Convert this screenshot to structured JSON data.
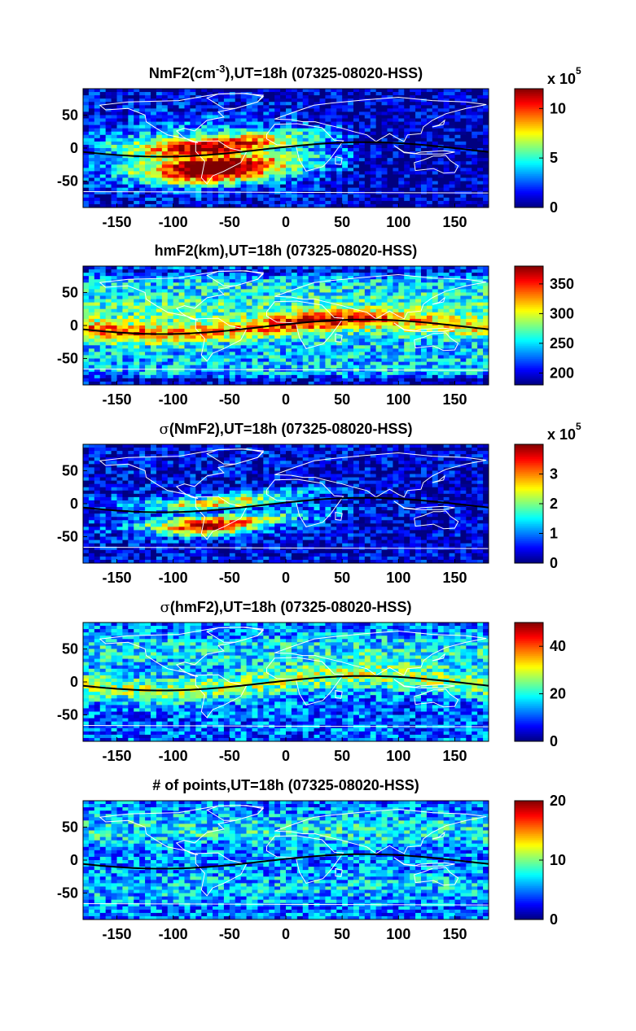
{
  "figure": {
    "background": "#ffffff",
    "map_bg": "#00008f",
    "coast_color": "#ffffff",
    "equator_color": "#000000",
    "colormap": "jet"
  },
  "chart_data": [
    {
      "type": "heatmap",
      "title_pre": "NmF2(cm",
      "title_sup": "-3",
      "title_post": "),UT=18h (07325-08020-HSS)",
      "xticks": [
        "-150",
        "-100",
        "-50",
        "0",
        "50",
        "100",
        "150"
      ],
      "xtick_values": [
        -150,
        -100,
        -50,
        0,
        50,
        100,
        150
      ],
      "yticks": [
        "50",
        "0",
        "-50"
      ],
      "ytick_values": [
        50,
        0,
        -50
      ],
      "xlim": [
        -180,
        180
      ],
      "ylim": [
        -90,
        90
      ],
      "clim": [
        0,
        12
      ],
      "cbar_ticks": [
        "0",
        "5",
        "10"
      ],
      "cbar_tick_values": [
        0,
        5,
        10
      ],
      "cbar_multiplier": "x 10",
      "cbar_exponent": "5",
      "field": "nmf2"
    },
    {
      "type": "heatmap",
      "title": "hmF2(km),UT=18h (07325-08020-HSS)",
      "xticks": [
        "-150",
        "-100",
        "-50",
        "0",
        "50",
        "100",
        "150"
      ],
      "xtick_values": [
        -150,
        -100,
        -50,
        0,
        50,
        100,
        150
      ],
      "yticks": [
        "50",
        "0",
        "-50"
      ],
      "ytick_values": [
        50,
        0,
        -50
      ],
      "xlim": [
        -180,
        180
      ],
      "ylim": [
        -90,
        90
      ],
      "clim": [
        180,
        380
      ],
      "cbar_ticks": [
        "200",
        "250",
        "300",
        "350"
      ],
      "cbar_tick_values": [
        200,
        250,
        300,
        350
      ],
      "field": "hmf2"
    },
    {
      "type": "heatmap",
      "title_sigma": "σ",
      "title": "(NmF2),UT=18h (07325-08020-HSS)",
      "xticks": [
        "-150",
        "-100",
        "-50",
        "0",
        "50",
        "100",
        "150"
      ],
      "xtick_values": [
        -150,
        -100,
        -50,
        0,
        50,
        100,
        150
      ],
      "yticks": [
        "50",
        "0",
        "-50"
      ],
      "ytick_values": [
        50,
        0,
        -50
      ],
      "xlim": [
        -180,
        180
      ],
      "ylim": [
        -90,
        90
      ],
      "clim": [
        0,
        4
      ],
      "cbar_ticks": [
        "0",
        "1",
        "2",
        "3"
      ],
      "cbar_tick_values": [
        0,
        1,
        2,
        3
      ],
      "cbar_multiplier": "x 10",
      "cbar_exponent": "5",
      "field": "sig_nmf2"
    },
    {
      "type": "heatmap",
      "title_sigma": "σ",
      "title": "(hmF2),UT=18h (07325-08020-HSS)",
      "xticks": [
        "-150",
        "-100",
        "-50",
        "0",
        "50",
        "100",
        "150"
      ],
      "xtick_values": [
        -150,
        -100,
        -50,
        0,
        50,
        100,
        150
      ],
      "yticks": [
        "50",
        "0",
        "-50"
      ],
      "ytick_values": [
        50,
        0,
        -50
      ],
      "xlim": [
        -180,
        180
      ],
      "ylim": [
        -90,
        90
      ],
      "clim": [
        0,
        50
      ],
      "cbar_ticks": [
        "0",
        "20",
        "40"
      ],
      "cbar_tick_values": [
        0,
        20,
        40
      ],
      "field": "sig_hmf2"
    },
    {
      "type": "heatmap",
      "title": "# of points,UT=18h (07325-08020-HSS)",
      "xticks": [
        "-150",
        "-100",
        "-50",
        "0",
        "50",
        "100",
        "150"
      ],
      "xtick_values": [
        -150,
        -100,
        -50,
        0,
        50,
        100,
        150
      ],
      "yticks": [
        "50",
        "0",
        "-50"
      ],
      "ytick_values": [
        50,
        0,
        -50
      ],
      "xlim": [
        -180,
        180
      ],
      "ylim": [
        -90,
        90
      ],
      "clim": [
        0,
        20
      ],
      "cbar_ticks": [
        "0",
        "10",
        "20"
      ],
      "cbar_tick_values": [
        0,
        10,
        20
      ],
      "field": "npts"
    }
  ]
}
